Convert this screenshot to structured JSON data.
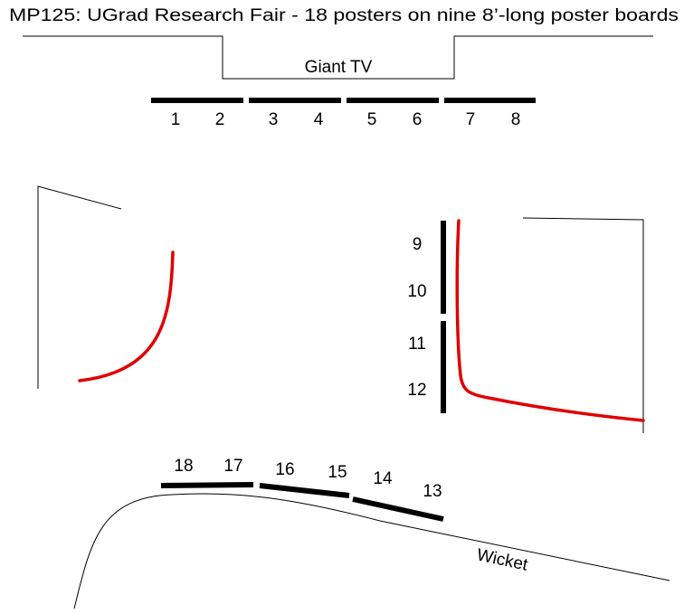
{
  "title": "MP125: UGrad Research Fair - 18 posters on nine 8’-long poster boards",
  "tv_label": "Giant TV",
  "wicket_label": "Wicket",
  "posters": [
    "1",
    "2",
    "3",
    "4",
    "5",
    "6",
    "7",
    "8",
    "9",
    "10",
    "11",
    "12",
    "13",
    "14",
    "15",
    "16",
    "17",
    "18"
  ]
}
